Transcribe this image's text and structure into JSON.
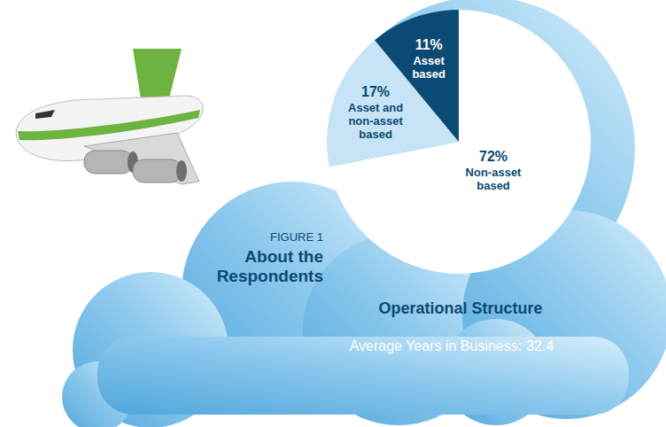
{
  "chart_data": {
    "type": "pie",
    "title": "About the Respondents",
    "subtitle": "Operational Structure",
    "annotations": [
      {
        "text": "FIGURE 1"
      },
      {
        "text": "Average Years in Business:",
        "value": 32.4
      }
    ],
    "categories": [
      "Non-asset based",
      "Asset and non-asset based",
      "Asset based"
    ],
    "values": [
      72,
      17,
      11
    ],
    "value_labels": [
      "72%",
      "17%",
      "11%"
    ],
    "colors": [
      "#ffffff",
      "#c6e4f5",
      "#0b4a73"
    ],
    "data_labels": true
  }
}
